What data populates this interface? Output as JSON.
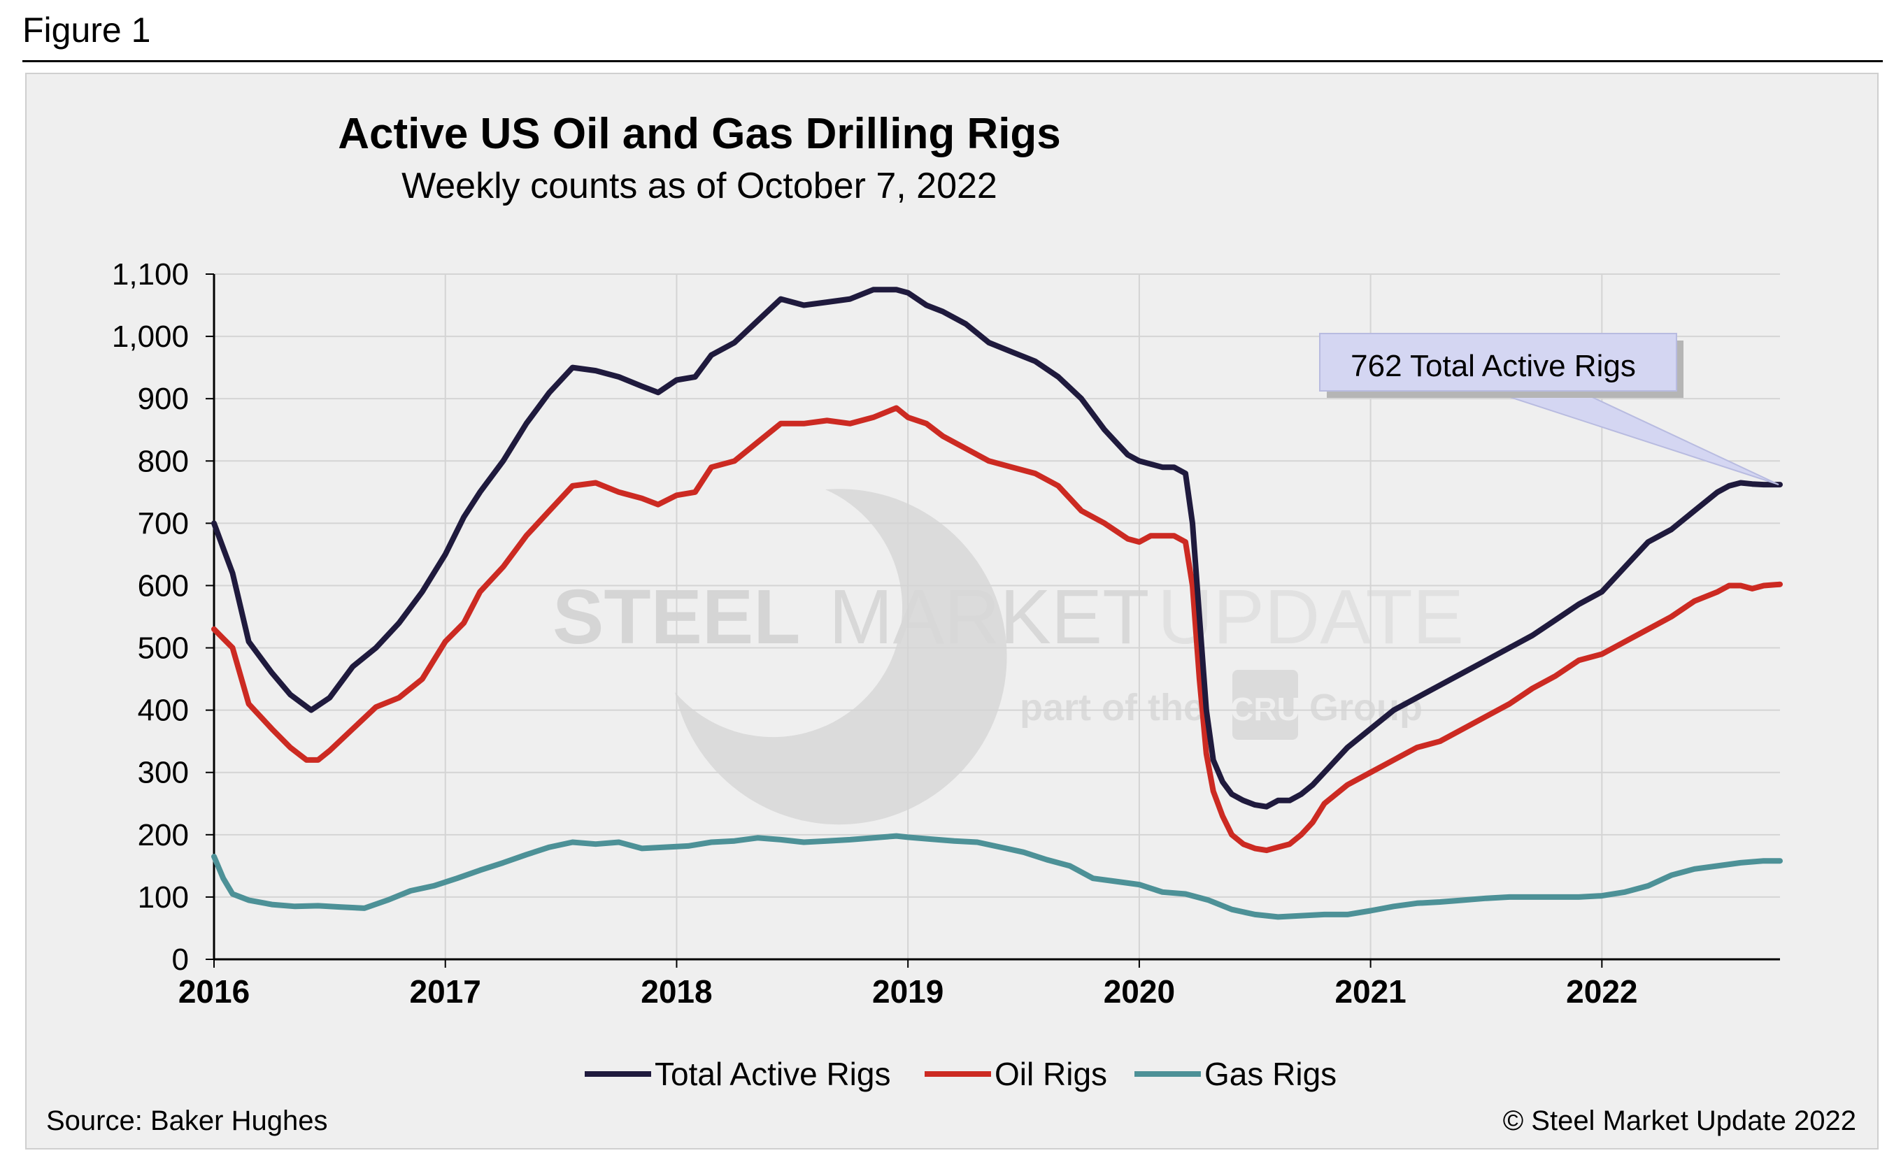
{
  "figure_label": "Figure 1",
  "source": "Source: Baker Hughes",
  "copyright": "© Steel Market Update 2022",
  "callout": "762 Total Active Rigs",
  "watermark": {
    "word1": "STEEL",
    "word2": "MARKET",
    "word3": "UPDATE",
    "tag_prefix": "part of the",
    "logo": "CRU",
    "tag_suffix": "Group"
  },
  "colors": {
    "total": "#1f1a3d",
    "oil": "#cc2a22",
    "gas": "#4d9197",
    "grid": "#d4d4d4",
    "callout_fill": "#d4d6f2"
  },
  "chart_data": {
    "type": "line",
    "title": "Active US Oil and Gas Drilling Rigs",
    "subtitle": "Weekly counts as of October 7, 2022",
    "xlabel": "",
    "ylabel": "",
    "ylim": [
      0,
      1100
    ],
    "xlim": [
      2016.0,
      2022.77
    ],
    "yticks": [
      0,
      100,
      200,
      300,
      400,
      500,
      600,
      700,
      800,
      900,
      1000,
      1100
    ],
    "ytick_labels": [
      "0",
      "100",
      "200",
      "300",
      "400",
      "500",
      "600",
      "700",
      "800",
      "900",
      "1,000",
      "1,100"
    ],
    "xticks": [
      2016,
      2017,
      2018,
      2019,
      2020,
      2021,
      2022
    ],
    "xtick_labels": [
      "2016",
      "2017",
      "2018",
      "2019",
      "2020",
      "2021",
      "2022"
    ],
    "grid": true,
    "legend_position": "bottom-center",
    "series": [
      {
        "name": "Total Active Rigs",
        "x": [
          2016.0,
          2016.04,
          2016.08,
          2016.15,
          2016.25,
          2016.33,
          2016.42,
          2016.5,
          2016.6,
          2016.7,
          2016.8,
          2016.9,
          2017.0,
          2017.08,
          2017.15,
          2017.25,
          2017.35,
          2017.45,
          2017.55,
          2017.65,
          2017.75,
          2017.85,
          2017.92,
          2018.0,
          2018.08,
          2018.15,
          2018.25,
          2018.35,
          2018.45,
          2018.55,
          2018.65,
          2018.75,
          2018.85,
          2018.95,
          2019.0,
          2019.08,
          2019.15,
          2019.25,
          2019.35,
          2019.45,
          2019.55,
          2019.65,
          2019.75,
          2019.85,
          2019.95,
          2020.0,
          2020.05,
          2020.1,
          2020.15,
          2020.2,
          2020.23,
          2020.26,
          2020.29,
          2020.32,
          2020.36,
          2020.4,
          2020.45,
          2020.5,
          2020.55,
          2020.6,
          2020.65,
          2020.7,
          2020.75,
          2020.8,
          2020.9,
          2021.0,
          2021.1,
          2021.2,
          2021.3,
          2021.4,
          2021.5,
          2021.6,
          2021.7,
          2021.8,
          2021.9,
          2022.0,
          2022.1,
          2022.2,
          2022.3,
          2022.4,
          2022.5,
          2022.55,
          2022.6,
          2022.65,
          2022.7,
          2022.77
        ],
        "values": [
          700,
          660,
          620,
          510,
          460,
          425,
          400,
          420,
          470,
          500,
          540,
          590,
          650,
          710,
          750,
          800,
          860,
          910,
          950,
          945,
          935,
          920,
          910,
          930,
          935,
          970,
          990,
          1025,
          1060,
          1050,
          1055,
          1060,
          1075,
          1075,
          1070,
          1050,
          1040,
          1020,
          990,
          975,
          960,
          935,
          900,
          850,
          810,
          800,
          795,
          790,
          790,
          780,
          700,
          550,
          400,
          320,
          285,
          265,
          255,
          248,
          245,
          255,
          255,
          265,
          280,
          300,
          340,
          370,
          400,
          420,
          440,
          460,
          480,
          500,
          520,
          545,
          570,
          590,
          630,
          670,
          690,
          720,
          750,
          760,
          765,
          763,
          762,
          762
        ]
      },
      {
        "name": "Oil Rigs",
        "x": [
          2016.0,
          2016.04,
          2016.08,
          2016.15,
          2016.25,
          2016.33,
          2016.4,
          2016.45,
          2016.5,
          2016.6,
          2016.7,
          2016.8,
          2016.9,
          2017.0,
          2017.08,
          2017.15,
          2017.25,
          2017.35,
          2017.45,
          2017.55,
          2017.65,
          2017.75,
          2017.85,
          2017.92,
          2018.0,
          2018.08,
          2018.15,
          2018.25,
          2018.35,
          2018.45,
          2018.55,
          2018.65,
          2018.75,
          2018.85,
          2018.95,
          2019.0,
          2019.08,
          2019.15,
          2019.25,
          2019.35,
          2019.45,
          2019.55,
          2019.65,
          2019.75,
          2019.85,
          2019.95,
          2020.0,
          2020.05,
          2020.1,
          2020.15,
          2020.2,
          2020.23,
          2020.26,
          2020.29,
          2020.32,
          2020.36,
          2020.4,
          2020.45,
          2020.5,
          2020.55,
          2020.6,
          2020.65,
          2020.7,
          2020.75,
          2020.8,
          2020.9,
          2021.0,
          2021.1,
          2021.2,
          2021.3,
          2021.4,
          2021.5,
          2021.6,
          2021.7,
          2021.8,
          2021.9,
          2022.0,
          2022.1,
          2022.2,
          2022.3,
          2022.4,
          2022.5,
          2022.55,
          2022.6,
          2022.65,
          2022.7,
          2022.77
        ],
        "values": [
          530,
          515,
          500,
          410,
          370,
          340,
          320,
          320,
          335,
          370,
          405,
          420,
          450,
          510,
          540,
          590,
          630,
          680,
          720,
          760,
          765,
          750,
          740,
          730,
          745,
          750,
          790,
          800,
          830,
          860,
          860,
          865,
          860,
          870,
          885,
          870,
          860,
          840,
          820,
          800,
          790,
          780,
          760,
          720,
          700,
          675,
          670,
          680,
          680,
          680,
          670,
          600,
          450,
          330,
          270,
          230,
          200,
          185,
          178,
          175,
          180,
          185,
          200,
          220,
          250,
          280,
          300,
          320,
          340,
          350,
          370,
          390,
          410,
          435,
          455,
          480,
          490,
          510,
          530,
          550,
          575,
          590,
          600,
          600,
          595,
          600,
          602
        ]
      },
      {
        "name": "Gas Rigs",
        "x": [
          2016.0,
          2016.04,
          2016.08,
          2016.15,
          2016.25,
          2016.35,
          2016.45,
          2016.55,
          2016.65,
          2016.75,
          2016.85,
          2016.95,
          2017.05,
          2017.15,
          2017.25,
          2017.35,
          2017.45,
          2017.55,
          2017.65,
          2017.75,
          2017.85,
          2017.95,
          2018.05,
          2018.15,
          2018.25,
          2018.35,
          2018.45,
          2018.55,
          2018.65,
          2018.75,
          2018.85,
          2018.95,
          2019.0,
          2019.1,
          2019.2,
          2019.3,
          2019.4,
          2019.5,
          2019.6,
          2019.7,
          2019.8,
          2019.9,
          2020.0,
          2020.1,
          2020.2,
          2020.3,
          2020.4,
          2020.5,
          2020.6,
          2020.7,
          2020.8,
          2020.9,
          2021.0,
          2021.1,
          2021.2,
          2021.3,
          2021.4,
          2021.5,
          2021.6,
          2021.7,
          2021.8,
          2021.9,
          2022.0,
          2022.1,
          2022.2,
          2022.3,
          2022.4,
          2022.5,
          2022.6,
          2022.7,
          2022.77
        ],
        "values": [
          165,
          130,
          105,
          95,
          88,
          85,
          86,
          84,
          82,
          95,
          110,
          118,
          130,
          143,
          155,
          168,
          180,
          188,
          185,
          188,
          178,
          180,
          182,
          188,
          190,
          195,
          192,
          188,
          190,
          192,
          195,
          198,
          196,
          193,
          190,
          188,
          180,
          172,
          160,
          150,
          130,
          125,
          120,
          108,
          105,
          95,
          80,
          72,
          68,
          70,
          72,
          72,
          78,
          85,
          90,
          92,
          95,
          98,
          100,
          100,
          100,
          100,
          102,
          108,
          118,
          135,
          145,
          150,
          155,
          158,
          158
        ]
      }
    ]
  }
}
